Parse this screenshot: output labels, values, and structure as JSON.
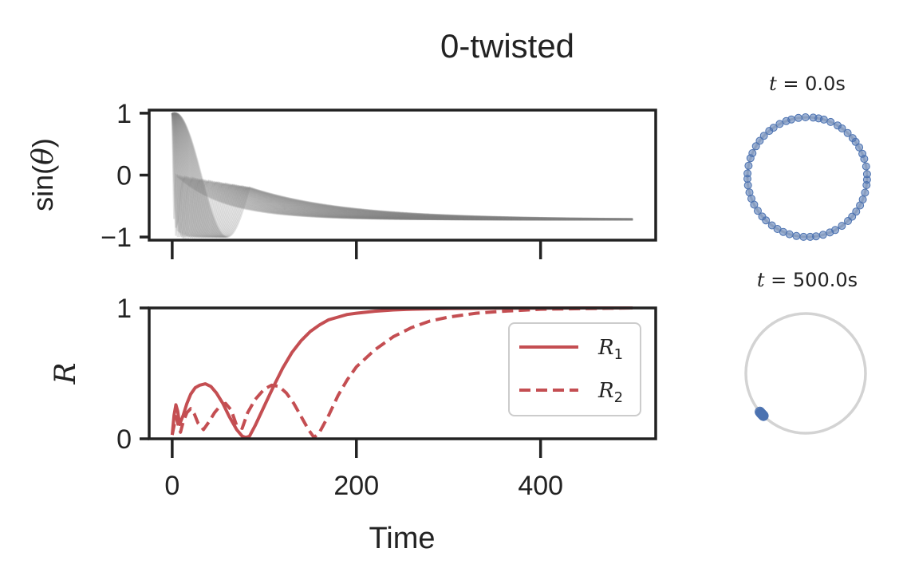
{
  "figure": {
    "title": "0-twisted",
    "xlabel": "Time",
    "colors": {
      "R": "#c44e52",
      "traces": "#808080",
      "oscillators": "#4c72b0",
      "unit_circle": "#d3d3d3"
    }
  },
  "chart_data": [
    {
      "type": "line",
      "panel": "phases",
      "ylabel_text": "sin(",
      "ylabel_var": "θ",
      "ylabel_close": ")",
      "xlim": [
        -25,
        525
      ],
      "ylim": [
        -1.05,
        1.05
      ],
      "x_ticks": [
        0,
        200,
        400
      ],
      "x_tick_labels": [
        "",
        "",
        ""
      ],
      "y_ticks": [
        1,
        0,
        -1
      ],
      "y_tick_labels": [
        "1",
        "0",
        "−1"
      ],
      "n_traces": 50,
      "t_end": 500,
      "final_value": -0.72,
      "grid": false
    },
    {
      "type": "line",
      "panel": "order_parameter",
      "ylabel": "R",
      "xlim": [
        -25,
        525
      ],
      "ylim": [
        0,
        1
      ],
      "x_ticks": [
        0,
        200,
        400
      ],
      "x_tick_labels": [
        "0",
        "200",
        "400"
      ],
      "y_ticks": [
        1,
        0
      ],
      "y_tick_labels": [
        "1",
        "0"
      ],
      "legend_position": "right",
      "series": [
        {
          "name": "R",
          "name_sub": "1",
          "style": "solid",
          "x": [
            0,
            2,
            4,
            6,
            8,
            12,
            16,
            20,
            25,
            30,
            36,
            42,
            48,
            55,
            62,
            70,
            76,
            80,
            84,
            90,
            100,
            110,
            120,
            130,
            140,
            150,
            160,
            170,
            180,
            190,
            200,
            220,
            240,
            260,
            280,
            300,
            330,
            360,
            400,
            450,
            500
          ],
          "values": [
            0.03,
            0.18,
            0.26,
            0.21,
            0.11,
            0.18,
            0.27,
            0.34,
            0.39,
            0.41,
            0.42,
            0.4,
            0.35,
            0.27,
            0.17,
            0.07,
            0.02,
            0.01,
            0.02,
            0.1,
            0.25,
            0.4,
            0.54,
            0.66,
            0.75,
            0.82,
            0.87,
            0.91,
            0.93,
            0.95,
            0.96,
            0.975,
            0.985,
            0.99,
            0.993,
            0.995,
            0.997,
            0.998,
            0.999,
            1.0,
            1.0
          ]
        },
        {
          "name": "R",
          "name_sub": "2",
          "style": "dashed",
          "x": [
            0,
            2,
            4,
            6,
            9,
            12,
            16,
            20,
            24,
            28,
            34,
            40,
            46,
            52,
            58,
            64,
            70,
            76,
            82,
            90,
            100,
            108,
            116,
            124,
            132,
            140,
            148,
            154,
            160,
            170,
            180,
            190,
            200,
            220,
            240,
            260,
            280,
            300,
            330,
            360,
            400,
            450,
            500
          ],
          "values": [
            0.03,
            0.1,
            0.17,
            0.12,
            0.05,
            0.13,
            0.2,
            0.23,
            0.19,
            0.12,
            0.07,
            0.13,
            0.2,
            0.25,
            0.27,
            0.22,
            0.1,
            0.08,
            0.2,
            0.3,
            0.38,
            0.41,
            0.4,
            0.35,
            0.27,
            0.17,
            0.07,
            0.01,
            0.05,
            0.18,
            0.33,
            0.45,
            0.55,
            0.68,
            0.78,
            0.85,
            0.9,
            0.93,
            0.96,
            0.975,
            0.99,
            0.995,
            1.0
          ]
        }
      ]
    }
  ],
  "snapshots": [
    {
      "label_var": "t",
      "label_value": " = 0.0s",
      "time": 0.0,
      "points": [
        0.05,
        0.18,
        0.31,
        0.4,
        0.52,
        0.63,
        0.71,
        0.83,
        0.95,
        1.04,
        1.17,
        1.29,
        1.38,
        1.47,
        1.6,
        1.72,
        1.84,
        1.93,
        2.05,
        2.17,
        2.26,
        2.38,
        2.49,
        2.6,
        2.73,
        2.82,
        2.95,
        3.08,
        3.17,
        3.28,
        3.4,
        3.51,
        3.62,
        3.74,
        3.86,
        3.95,
        4.08,
        4.19,
        4.3,
        4.41,
        4.53,
        4.65,
        4.76,
        4.86,
        4.98,
        5.1,
        5.2,
        5.33,
        5.46,
        5.56,
        5.67,
        5.79,
        5.9,
        6.02,
        6.15,
        6.24
      ]
    },
    {
      "label_var": "t",
      "label_value": " = 500.0s",
      "time": 500.0,
      "points": [
        3.84,
        3.86,
        3.87,
        3.88,
        3.89,
        3.9,
        3.91,
        3.92,
        3.93
      ]
    }
  ]
}
